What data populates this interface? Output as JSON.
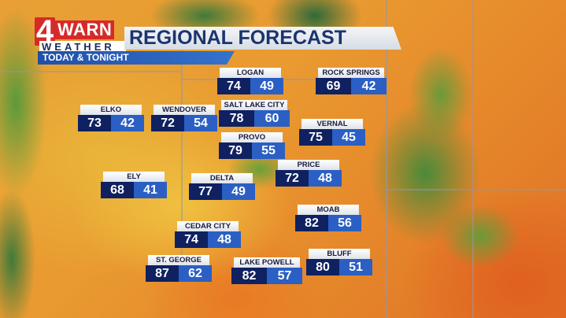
{
  "header": {
    "logo_number": "4",
    "logo_warn": "WARN",
    "logo_weather": "WEATHER",
    "title": "REGIONAL FORECAST",
    "subtitle": "TODAY & TONIGHT"
  },
  "colors": {
    "high_box": "#0f2160",
    "low_box": "#2b5fc4",
    "title_text": "#1b3470",
    "logo_red": "#d62a2a"
  },
  "cities": [
    {
      "name": "LOGAN",
      "high": "74",
      "low": "49"
    },
    {
      "name": "ROCK SPRINGS",
      "high": "69",
      "low": "42"
    },
    {
      "name": "ELKO",
      "high": "73",
      "low": "42"
    },
    {
      "name": "WENDOVER",
      "high": "72",
      "low": "54"
    },
    {
      "name": "SALT LAKE CITY",
      "high": "78",
      "low": "60"
    },
    {
      "name": "VERNAL",
      "high": "75",
      "low": "45"
    },
    {
      "name": "PROVO",
      "high": "79",
      "low": "55"
    },
    {
      "name": "PRICE",
      "high": "72",
      "low": "48"
    },
    {
      "name": "ELY",
      "high": "68",
      "low": "41"
    },
    {
      "name": "DELTA",
      "high": "77",
      "low": "49"
    },
    {
      "name": "MOAB",
      "high": "82",
      "low": "56"
    },
    {
      "name": "CEDAR CITY",
      "high": "74",
      "low": "48"
    },
    {
      "name": "ST. GEORGE",
      "high": "87",
      "low": "62"
    },
    {
      "name": "LAKE POWELL",
      "high": "82",
      "low": "57"
    },
    {
      "name": "BLUFF",
      "high": "80",
      "low": "51"
    }
  ]
}
